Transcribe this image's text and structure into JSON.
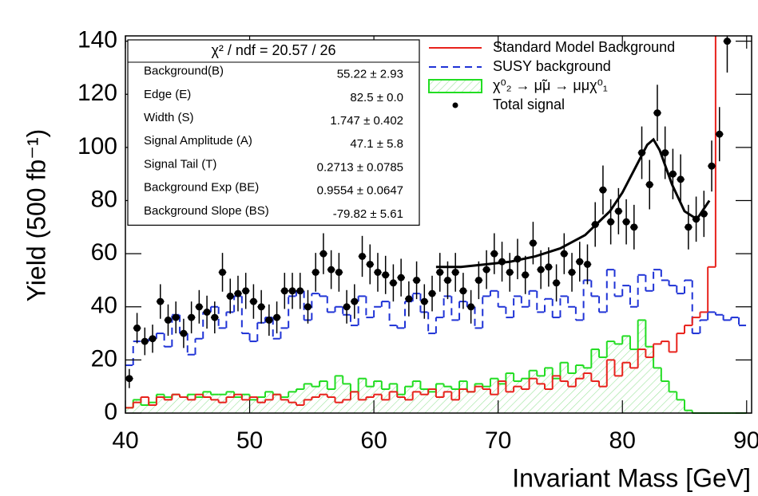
{
  "chart_data": {
    "type": "histogram",
    "xlabel": "Invariant Mass [GeV]",
    "ylabel": "Yield (500 fb⁻¹)",
    "xlim": [
      40,
      90.4
    ],
    "ylim": [
      0,
      142
    ],
    "xticks": [
      40,
      50,
      60,
      70,
      80,
      90
    ],
    "yticks": [
      0,
      20,
      40,
      60,
      80,
      100,
      120,
      140
    ],
    "legend": "upper right",
    "bins": [
      40,
      40.625,
      41.25,
      41.875,
      42.5,
      43.125,
      43.75,
      44.375,
      45,
      45.625,
      46.25,
      46.875,
      47.5,
      48.125,
      48.75,
      49.375,
      50,
      50.625,
      51.25,
      51.875,
      52.5,
      53.125,
      53.75,
      54.375,
      55,
      55.625,
      56.25,
      56.875,
      57.5,
      58.125,
      58.75,
      59.375,
      60,
      60.625,
      61.25,
      61.875,
      62.5,
      63.125,
      63.75,
      64.375,
      65,
      65.625,
      66.25,
      66.875,
      67.5,
      68.125,
      68.75,
      69.375,
      70,
      70.625,
      71.25,
      71.875,
      72.5,
      73.125,
      73.75,
      74.375,
      75,
      75.625,
      76.25,
      76.875,
      77.5,
      78.125,
      78.75,
      79.375,
      80,
      80.625,
      81.25,
      81.875,
      82.5,
      83.125,
      83.75,
      84.375,
      85,
      85.625,
      86.25,
      86.875,
      87.5,
      88.125,
      88.75,
      89.375,
      90
    ],
    "series": [
      {
        "name": "Standard Model Background",
        "color": "#e8221c",
        "style": "step",
        "values": [
          2,
          4,
          6,
          3,
          6,
          5,
          7,
          6,
          5,
          7,
          6,
          5,
          4,
          6,
          7,
          5,
          6,
          4,
          5,
          7,
          5,
          4,
          3,
          5,
          6,
          7,
          6,
          4,
          5,
          8,
          5,
          6,
          7,
          5,
          8,
          6,
          5,
          8,
          7,
          9,
          6,
          8,
          5,
          9,
          8,
          10,
          9,
          7,
          12,
          8,
          10,
          9,
          13,
          11,
          9,
          14,
          12,
          10,
          13,
          15,
          12,
          10,
          20,
          14,
          19,
          17,
          24,
          21,
          26,
          27,
          23,
          30,
          33,
          36,
          38,
          55,
          150,
          150,
          150,
          150
        ]
      },
      {
        "name": "SUSY background",
        "color": "#1f33d6",
        "style": "dashed",
        "values": [
          18,
          27,
          27,
          28,
          30,
          25,
          37,
          30,
          22,
          28,
          38,
          40,
          32,
          38,
          44,
          30,
          27,
          34,
          36,
          28,
          32,
          44,
          46,
          35,
          45,
          44,
          38,
          40,
          37,
          33,
          44,
          36,
          40,
          42,
          33,
          32,
          42,
          45,
          38,
          30,
          36,
          44,
          35,
          42,
          40,
          32,
          44,
          46,
          40,
          36,
          44,
          40,
          46,
          38,
          43,
          36,
          44,
          40,
          35,
          50,
          44,
          38,
          54,
          44,
          48,
          40,
          52,
          46,
          54,
          50,
          48,
          45,
          50,
          30,
          35,
          38,
          37,
          35,
          36,
          33
        ]
      },
      {
        "name": "χ⁰₂ → μ̃μ → μμχ⁰₁",
        "color": "#22dd22",
        "style": "hatched",
        "values": [
          2,
          5,
          3,
          4,
          7,
          6,
          7,
          6,
          7,
          6,
          8,
          7,
          7,
          8,
          6,
          7,
          5,
          6,
          8,
          7,
          6,
          8,
          9,
          11,
          10,
          12,
          9,
          14,
          11,
          8,
          13,
          10,
          12,
          9,
          11,
          7,
          10,
          12,
          9,
          8,
          11,
          10,
          9,
          12,
          8,
          11,
          10,
          13,
          11,
          15,
          12,
          13,
          16,
          14,
          17,
          13,
          19,
          15,
          18,
          17,
          24,
          21,
          27,
          26,
          29,
          24,
          35,
          25,
          17,
          12,
          8,
          5,
          1,
          0,
          0,
          0,
          0,
          0,
          0,
          0
        ]
      },
      {
        "name": "Total signal",
        "color": "#000000",
        "style": "points",
        "values": [
          13,
          32,
          27,
          28,
          42,
          35,
          36,
          30,
          36,
          40,
          38,
          36,
          53,
          44,
          45,
          46,
          42,
          40,
          35,
          36,
          46,
          46,
          46,
          40,
          53,
          60,
          54,
          53,
          40,
          42,
          59,
          56,
          53,
          52,
          49,
          51,
          43,
          50,
          42,
          45,
          53,
          50,
          53,
          46,
          40,
          50,
          54,
          60,
          57,
          53,
          58,
          52,
          64,
          54,
          55,
          49,
          60,
          53,
          57,
          56,
          71,
          84,
          72,
          76,
          72,
          70,
          98,
          86,
          113,
          98,
          90,
          88,
          70,
          73,
          75,
          93,
          105,
          140,
          null,
          null
        ],
        "errors": [
          3.6,
          5.7,
          5.2,
          5.3,
          6.5,
          5.9,
          6.0,
          5.5,
          6.0,
          6.3,
          6.2,
          6.0,
          7.3,
          6.6,
          6.7,
          6.8,
          6.5,
          6.3,
          5.9,
          6.0,
          6.8,
          6.8,
          6.8,
          6.3,
          7.3,
          7.7,
          7.3,
          7.3,
          6.3,
          6.5,
          7.7,
          7.5,
          7.3,
          7.2,
          7.0,
          7.1,
          6.6,
          7.1,
          6.5,
          6.7,
          7.3,
          7.1,
          7.3,
          6.8,
          6.3,
          7.1,
          7.3,
          7.7,
          7.5,
          7.3,
          7.6,
          7.2,
          8.0,
          7.3,
          7.4,
          7.0,
          7.7,
          7.3,
          7.5,
          7.5,
          8.4,
          9.2,
          8.5,
          8.7,
          8.5,
          8.4,
          9.9,
          9.3,
          10.6,
          9.9,
          9.5,
          9.4,
          8.4,
          8.5,
          8.7,
          9.6,
          10.2,
          11.8,
          null,
          null
        ]
      }
    ],
    "fit": {
      "color": "#000000",
      "x": [
        65,
        67,
        69,
        71,
        73,
        75,
        77,
        79,
        80,
        81,
        82,
        82.5,
        83,
        84,
        85,
        86,
        87
      ],
      "y": [
        55,
        55,
        56,
        57,
        59,
        62,
        67,
        76,
        83,
        92,
        101,
        103,
        99,
        86,
        76,
        73,
        80
      ]
    },
    "stat_box": {
      "title": "χ² / ndf = 20.57 / 26",
      "rows": [
        {
          "label": "Background(B)",
          "value": "55.22 ± 2.93"
        },
        {
          "label": "Edge (E)",
          "value": "82.5 ± 0.0"
        },
        {
          "label": "Width (S)",
          "value": "1.747 ± 0.402"
        },
        {
          "label": "Signal Amplitude (A)",
          "value": "47.1 ± 5.8"
        },
        {
          "label": "Signal Tail (T)",
          "value": "0.2713 ± 0.0785"
        },
        {
          "label": "Background Exp (BE)",
          "value": "0.9554 ± 0.0647"
        },
        {
          "label": "Background Slope (BS)",
          "value": "-79.82 ± 5.61"
        }
      ]
    }
  }
}
